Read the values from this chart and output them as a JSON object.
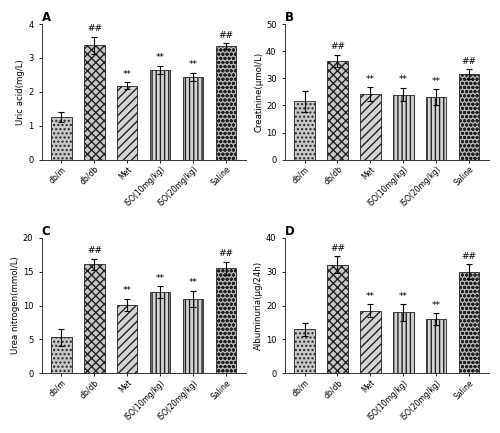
{
  "categories": [
    "db/m",
    "db/db",
    "Met",
    "ISO(10mg/kg)",
    "ISO(20mg/kg)",
    "Saline"
  ],
  "panel_A": {
    "title": "A",
    "ylabel": "Uric acid(mg/L)",
    "values": [
      1.25,
      3.38,
      2.18,
      2.65,
      2.45,
      3.35
    ],
    "errors": [
      0.15,
      0.25,
      0.1,
      0.12,
      0.12,
      0.08
    ],
    "ylim": [
      0,
      4
    ],
    "yticks": [
      0,
      1,
      2,
      3,
      4
    ],
    "sig_db": [
      2,
      3,
      4
    ],
    "sig_saline": []
  },
  "panel_B": {
    "title": "B",
    "ylabel": "Creatinine(μmol/L)",
    "values": [
      21.5,
      36.5,
      24.2,
      24.0,
      23.0,
      31.5
    ],
    "errors": [
      3.8,
      2.2,
      2.5,
      2.5,
      3.0,
      1.8
    ],
    "ylim": [
      0,
      50
    ],
    "yticks": [
      0,
      10,
      20,
      30,
      40,
      50
    ],
    "sig_db": [
      2,
      3,
      4
    ],
    "sig_saline": []
  },
  "panel_C": {
    "title": "C",
    "ylabel": "Urea nitrogen(mmol/L)",
    "values": [
      5.3,
      16.1,
      10.1,
      12.0,
      11.0,
      15.5
    ],
    "errors": [
      1.2,
      0.8,
      0.9,
      0.9,
      1.2,
      1.0
    ],
    "ylim": [
      0,
      20
    ],
    "yticks": [
      0,
      5,
      10,
      15,
      20
    ],
    "sig_db": [
      2,
      3,
      4
    ],
    "sig_saline": []
  },
  "panel_D": {
    "title": "D",
    "ylabel": "Albuminuria(μg/24h)",
    "values": [
      13.0,
      32.0,
      18.5,
      18.0,
      16.0,
      30.0
    ],
    "errors": [
      2.0,
      2.5,
      2.0,
      2.5,
      1.8,
      2.2
    ],
    "ylim": [
      0,
      40
    ],
    "yticks": [
      0,
      10,
      20,
      30,
      40
    ],
    "sig_db": [
      2,
      3,
      4
    ],
    "sig_saline": []
  },
  "hatch_patterns": [
    "....",
    "xxxx",
    "////",
    "||||",
    "||||",
    "oooo"
  ],
  "bar_facecolor": "#d0d0d0",
  "edgecolor": "#222222",
  "background_color": "#ffffff"
}
